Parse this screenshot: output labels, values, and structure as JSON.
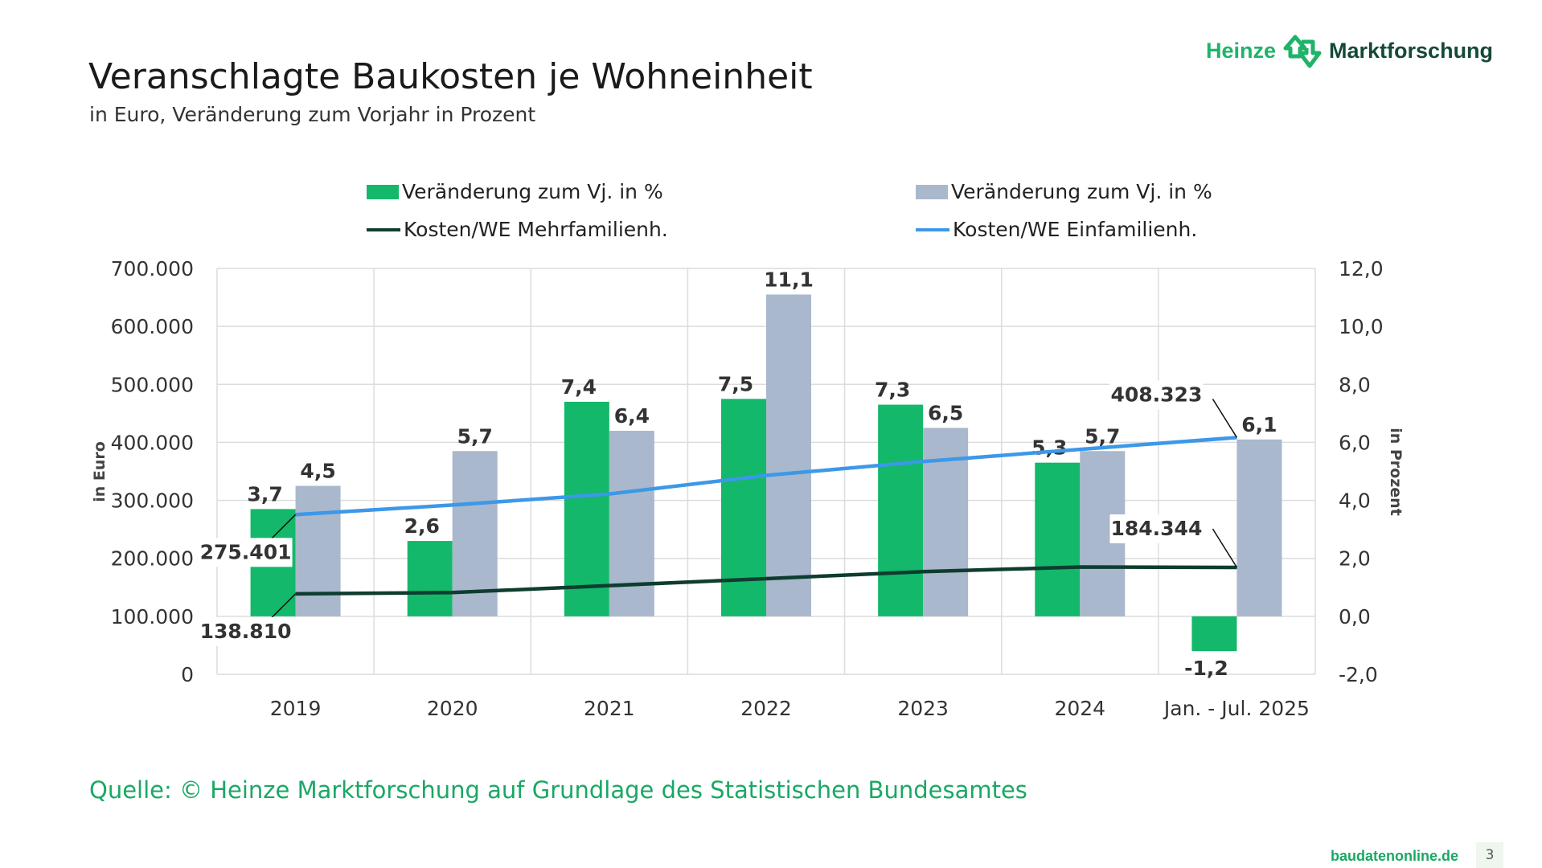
{
  "header": {
    "title": "Veranschlagte Baukosten je Wohneinheit",
    "subtitle": "in Euro, Veränderung zum Vorjahr in Prozent"
  },
  "logo": {
    "part1": "Heinze",
    "part2": "Marktforschung",
    "icon": "arrows-house-icon"
  },
  "footer": {
    "source": "Quelle: © Heinze Marktforschung auf Grundlage des Statistischen Bundesamtes",
    "site": "baudatenonline.de",
    "page": "3"
  },
  "colors": {
    "green": "#13b86a",
    "gray": "#a9b8cc",
    "dark_line": "#0e3d30",
    "blue_line": "#3c98e8",
    "source": "#1aa864"
  },
  "chart_data": {
    "type": "bar+line",
    "categories": [
      "2019",
      "2020",
      "2021",
      "2022",
      "2023",
      "2024",
      "Jan. - Jul. 2025"
    ],
    "legend": [
      "Veränderung zum Vj. in %",
      "Veränderung zum Vj. in %",
      "Kosten/WE Mehrfamilienh.",
      "Kosten/WE Einfamilienh."
    ],
    "legend_placement": "top",
    "bars": [
      {
        "name": "Veränderung zum Vj. in %",
        "color": "#13b86a",
        "axis": "right",
        "values": [
          3.7,
          2.6,
          7.4,
          7.5,
          7.3,
          5.3,
          -1.2
        ],
        "labels": [
          "3,7",
          "2,6",
          "7,4",
          "7,5",
          "7,3",
          "5,3",
          "-1,2"
        ]
      },
      {
        "name": "Veränderung zum Vj. in %",
        "color": "#a9b8cc",
        "axis": "right",
        "values": [
          4.5,
          5.7,
          6.4,
          11.1,
          6.5,
          5.7,
          6.1
        ],
        "labels": [
          "4,5",
          "5,7",
          "6,4",
          "11,1",
          "6,5",
          "5,7",
          "6,1"
        ]
      }
    ],
    "lines": [
      {
        "name": "Kosten/WE Mehrfamilienh.",
        "color": "#0e3d30",
        "axis": "left",
        "values": [
          138810,
          141000,
          153000,
          165000,
          177000,
          185000,
          184344
        ],
        "labeled": {
          "0": "138.810",
          "6": "184.344"
        }
      },
      {
        "name": "Kosten/WE Einfamilienh.",
        "color": "#3c98e8",
        "axis": "left",
        "values": [
          275401,
          292000,
          311000,
          343000,
          367000,
          388000,
          408323
        ],
        "labeled": {
          "0": "275.401",
          "6": "408.323"
        }
      }
    ],
    "ylabel_left": "in Euro",
    "ylabel_right": "in Prozent",
    "ylim_left": [
      0,
      700000
    ],
    "ylim_right": [
      -2,
      12
    ],
    "yticks_left": [
      "0",
      "100.000",
      "200.000",
      "300.000",
      "400.000",
      "500.000",
      "600.000",
      "700.000"
    ],
    "yticks_right": [
      "-2,0",
      "0,0",
      "2,0",
      "4,0",
      "6,0",
      "8,0",
      "10,0",
      "12,0"
    ],
    "grid": true
  }
}
